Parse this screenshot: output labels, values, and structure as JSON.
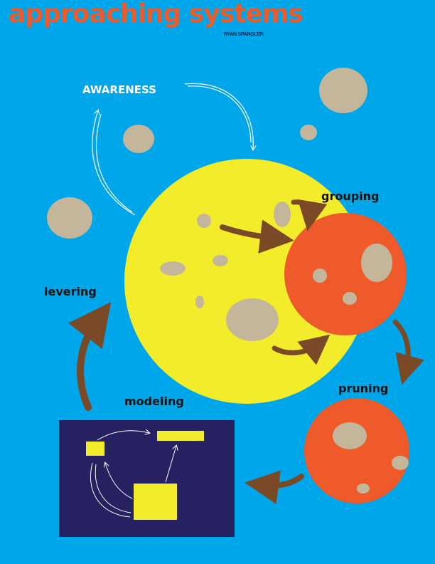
{
  "title": "approaching systems",
  "author": "RYAN SPANGLER",
  "labels": {
    "awareness": "AWARENESS",
    "grouping": "grouping",
    "pruning": "pruning",
    "modeling": "modeling",
    "levering": "levering"
  },
  "colors": {
    "background": "#00a6ea",
    "sphere_yellow": "#f2ec2b",
    "sphere_orange": "#ef5a2a",
    "crater": "#c4b69a",
    "arrow_brown": "#7a4a26",
    "model_panel": "#262262",
    "text_dark": "#111111"
  },
  "icons": [
    "yellow-sphere-icon",
    "orange-sphere-icon",
    "model-panel-icon",
    "curved-arrow-icon"
  ]
}
